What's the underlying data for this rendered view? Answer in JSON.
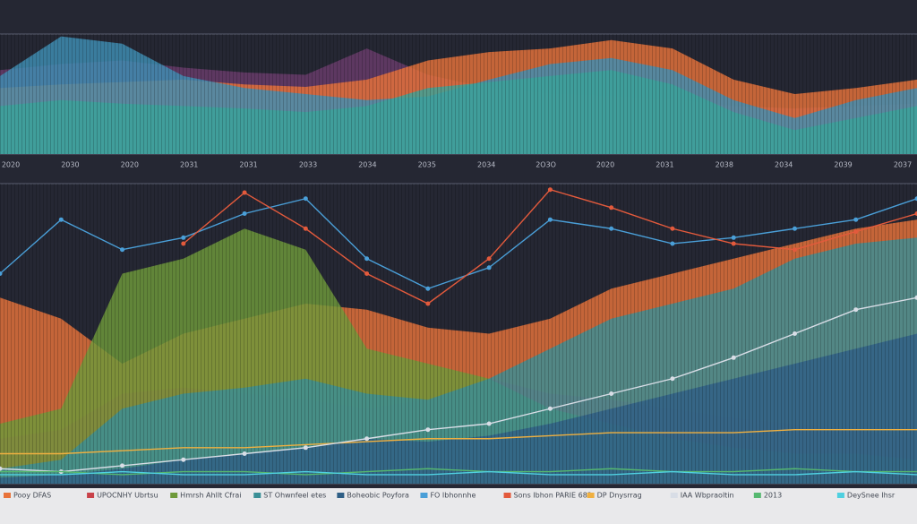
{
  "chart_data": [
    {
      "type": "area",
      "ylim": [
        0,
        100
      ],
      "categories": [
        "2020",
        "2030",
        "2020",
        "2031",
        "2031",
        "2033",
        "2034",
        "2035",
        "2034",
        "2O3O",
        "2020",
        "2031",
        "2038",
        "2034",
        "2039",
        "2037"
      ],
      "series": [
        {
          "color": "#6a3c6b",
          "values": [
            70,
            75,
            78,
            72,
            68,
            66,
            88,
            66,
            55,
            50,
            48,
            45,
            40,
            38,
            40,
            42
          ]
        },
        {
          "color": "#e8733a",
          "values": [
            55,
            58,
            60,
            62,
            58,
            56,
            62,
            78,
            85,
            88,
            95,
            88,
            62,
            50,
            55,
            62
          ]
        },
        {
          "color": "#3f8fb5",
          "values": [
            65,
            98,
            92,
            65,
            55,
            50,
            45,
            48,
            62,
            75,
            80,
            70,
            45,
            30,
            45,
            55
          ]
        },
        {
          "color": "#3aa39a",
          "values": [
            40,
            45,
            42,
            40,
            38,
            35,
            40,
            55,
            60,
            65,
            70,
            58,
            35,
            20,
            30,
            40
          ]
        }
      ]
    },
    {
      "type": "area",
      "ylim": [
        0,
        100
      ],
      "legend": "bottom",
      "series": [
        {
          "name": "Pooy DFAS",
          "type": "area",
          "color": "#e8733a",
          "values": [
            62,
            55,
            40,
            50,
            55,
            60,
            58,
            52,
            50,
            55,
            65,
            70,
            75,
            80,
            85,
            88
          ]
        },
        {
          "name": "UPOCNHY Ubrtsu",
          "type": "area",
          "color": "#c9424a",
          "values": [
            15,
            18,
            30,
            32,
            30,
            28,
            25,
            28,
            35,
            30,
            28,
            25,
            22,
            20,
            18,
            15
          ]
        },
        {
          "name": "Hmrsh Ahllt Cfrai",
          "type": "area",
          "color": "#6f9a3a",
          "values": [
            20,
            25,
            70,
            75,
            85,
            78,
            45,
            40,
            35,
            25,
            20,
            15,
            12,
            10,
            10,
            8
          ]
        },
        {
          "name": "ST Ohwnfeel etes",
          "type": "area",
          "color": "#3a8f96",
          "values": [
            5,
            8,
            25,
            30,
            32,
            35,
            30,
            28,
            35,
            45,
            55,
            60,
            65,
            75,
            80,
            82
          ]
        },
        {
          "name": "Boheobic Poyfora",
          "type": "area",
          "color": "#2f5f86",
          "values": [
            2,
            3,
            5,
            8,
            10,
            12,
            15,
            14,
            16,
            20,
            25,
            30,
            35,
            40,
            45,
            50
          ]
        },
        {
          "name": "FO Ibhonnhe",
          "type": "line",
          "color": "#4a9fd8",
          "values": [
            70,
            88,
            78,
            82,
            90,
            95,
            75,
            65,
            72,
            88,
            85,
            80,
            82,
            85,
            88,
            95
          ]
        },
        {
          "name": "Sons Ibhon PARIE 683",
          "type": "line",
          "color": "#e35a3c",
          "values": [
            null,
            null,
            null,
            80,
            97,
            85,
            70,
            60,
            75,
            98,
            92,
            85,
            80,
            78,
            84,
            90
          ]
        },
        {
          "name": "DP Dnysrrag",
          "type": "line",
          "color": "#f0b040",
          "values": [
            10,
            10,
            11,
            12,
            12,
            13,
            14,
            15,
            15,
            16,
            17,
            17,
            17,
            18,
            18,
            18
          ]
        },
        {
          "name": "IAA Wbpraoltin",
          "type": "line",
          "color": "#d8dde6",
          "values": [
            5,
            4,
            6,
            8,
            10,
            12,
            15,
            18,
            20,
            25,
            30,
            35,
            42,
            50,
            58,
            62
          ]
        },
        {
          "name": "2013",
          "type": "line",
          "color": "#56b870",
          "values": [
            4,
            4,
            3,
            4,
            4,
            3,
            4,
            5,
            4,
            4,
            5,
            4,
            4,
            5,
            4,
            4
          ]
        },
        {
          "name": "DeySnee Ihsr",
          "type": "line",
          "color": "#4fd0e0",
          "values": [
            3,
            3,
            4,
            3,
            3,
            4,
            3,
            3,
            4,
            3,
            3,
            4,
            3,
            3,
            4,
            3
          ]
        }
      ]
    }
  ]
}
